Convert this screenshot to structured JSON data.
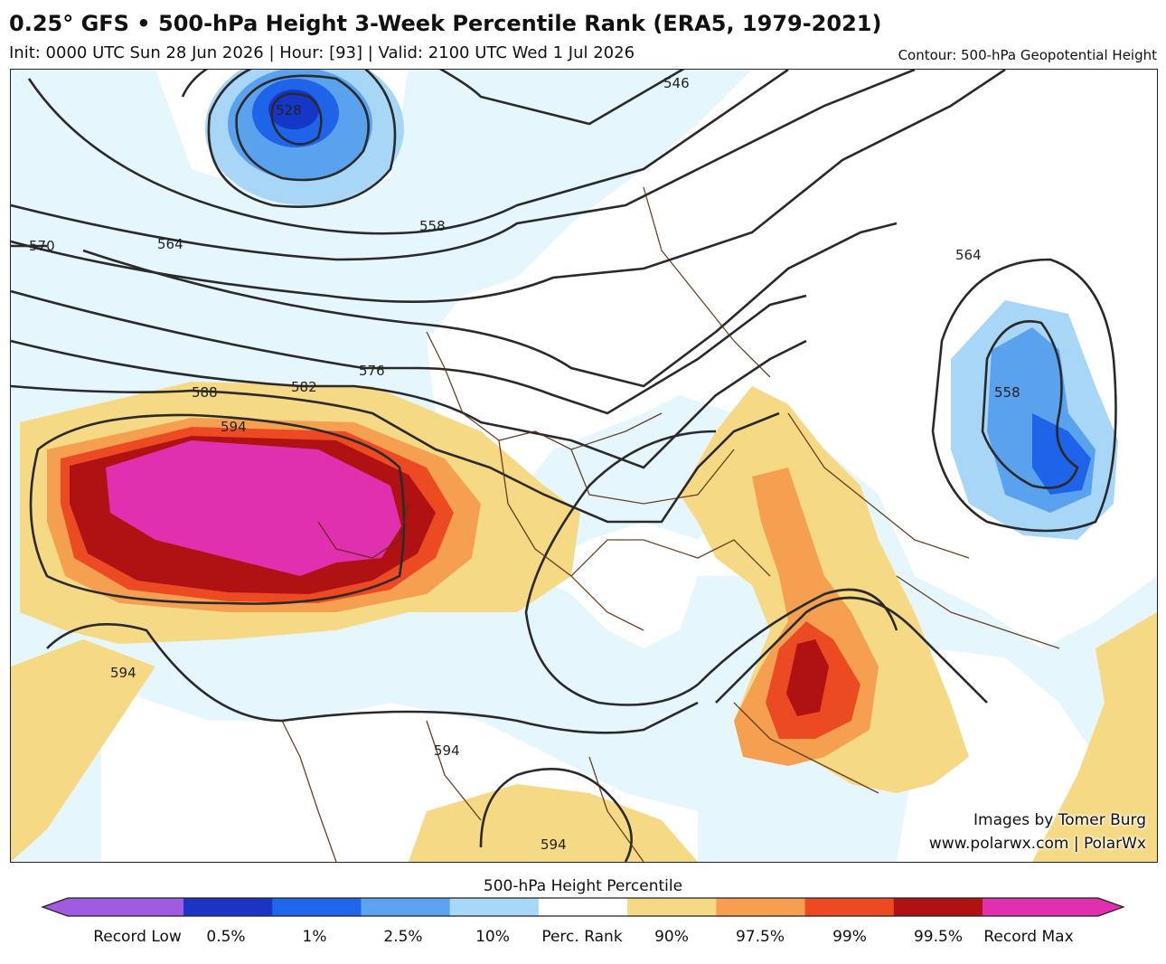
{
  "header": {
    "title": "0.25° GFS • 500-hPa Height 3-Week Percentile Rank (ERA5, 1979-2021)",
    "subtitle": "Init: 0000 UTC Sun 28 Jun 2026 | Hour: [93] | Valid: 2100 UTC Wed 1 Jul 2026",
    "contour_note": "Contour: 500-hPa Geopotential Height"
  },
  "map": {
    "contour_labels": [
      "528",
      "546",
      "558",
      "564",
      "570",
      "576",
      "582",
      "588",
      "594",
      "564",
      "558",
      "594",
      "594",
      "594"
    ],
    "colors": {
      "ocean_low": "#e6f6fd",
      "land_neutral": "#ffffff",
      "p10": "#a8d6f7",
      "p2_5": "#5aa2ee",
      "p1": "#1e63e8",
      "p0_5": "#1636c8",
      "p90": "#f5d985",
      "p97_5": "#f5a050",
      "p99": "#ec4a22",
      "p99_5": "#b01214",
      "record_max": "#e030b0",
      "border": "#5a2e10",
      "contour": "#2a2a2a"
    }
  },
  "credits": {
    "line1": "Images by Tomer Burg",
    "line2": "www.polarwx.com | PolarWx"
  },
  "legend": {
    "title": "500-hPa Height Percentile",
    "labels": [
      "Record Low",
      "0.5%",
      "1%",
      "2.5%",
      "10%",
      "Perc. Rank",
      "90%",
      "97.5%",
      "99%",
      "99.5%",
      "Record Max"
    ],
    "bins": [
      "#a05ce0",
      "#1c34c4",
      "#1f66ea",
      "#5ca3ee",
      "#a8d8f8",
      "#ffffff",
      "#f5d985",
      "#f5a050",
      "#ec4a22",
      "#b01214",
      "#e030b0"
    ]
  }
}
